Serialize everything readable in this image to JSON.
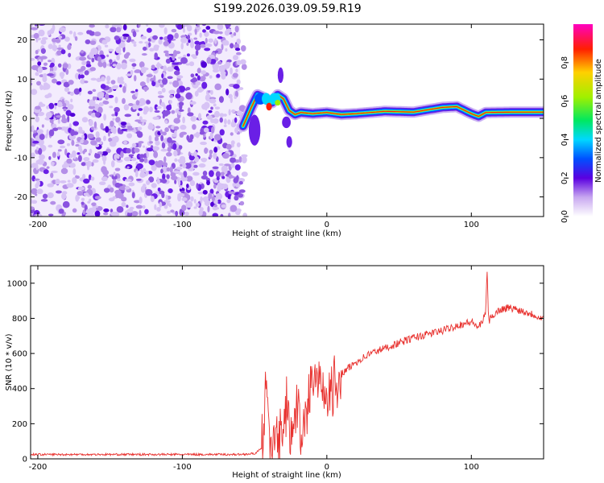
{
  "title": "S199.2026.039.09.59.R19",
  "chart_data": [
    {
      "type": "heatmap",
      "name": "spectrogram",
      "xlabel": "Height of straight line (km)",
      "ylabel": "Frequency (Hz)",
      "xlim": [
        -205,
        150
      ],
      "ylim": [
        -25,
        24
      ],
      "xticks": [
        -200,
        -100,
        0,
        100
      ],
      "yticks": [
        -20,
        -10,
        0,
        10,
        20
      ],
      "noise_region_x": [
        -205,
        -60
      ],
      "signal_track": {
        "x": [
          -58,
          -52,
          -48,
          -42,
          -38,
          -34,
          -30,
          -26,
          -22,
          -18,
          -10,
          0,
          10,
          20,
          40,
          60,
          80,
          90,
          100,
          105,
          110,
          130,
          150
        ],
        "freq": [
          -2,
          3,
          6,
          5,
          4,
          6,
          5,
          2,
          1,
          1.5,
          1.2,
          1.5,
          1.0,
          1.2,
          1.8,
          1.6,
          2.8,
          3.0,
          1.2,
          0.5,
          1.5,
          1.6,
          1.6
        ]
      },
      "colorbar": {
        "label": "Normalized spectral amplitude",
        "range": [
          0.0,
          1.0
        ],
        "ticks": [
          0.0,
          0.2,
          0.4,
          0.6,
          0.8
        ],
        "tick_labels": [
          "0.0",
          "0.2",
          "0.4",
          "0.6",
          "0.8"
        ]
      }
    },
    {
      "type": "line",
      "name": "snr",
      "xlabel": "Height of straight line (km)",
      "ylabel": "SNR (10 * v/v)",
      "xlim": [
        -205,
        150
      ],
      "ylim": [
        0,
        1100
      ],
      "xticks": [
        -200,
        -100,
        0,
        100
      ],
      "yticks": [
        0,
        200,
        400,
        600,
        800,
        1000
      ],
      "color": "#e8312e",
      "series": {
        "x": [
          -205,
          -150,
          -100,
          -60,
          -50,
          -45,
          -43,
          -42,
          -41,
          -40,
          -38,
          -35,
          -30,
          -28,
          -25,
          -22,
          -20,
          -18,
          -15,
          -12,
          -10,
          -5,
          0,
          5,
          10,
          20,
          30,
          40,
          50,
          60,
          70,
          80,
          90,
          100,
          105,
          108,
          110,
          111,
          112,
          115,
          120,
          125,
          130,
          140,
          150
        ],
        "y": [
          25,
          25,
          25,
          25,
          30,
          60,
          200,
          500,
          300,
          150,
          50,
          100,
          150,
          300,
          150,
          200,
          300,
          100,
          250,
          400,
          450,
          400,
          300,
          400,
          480,
          550,
          600,
          630,
          660,
          690,
          710,
          730,
          760,
          780,
          750,
          780,
          850,
          1080,
          780,
          820,
          850,
          860,
          855,
          830,
          800
        ]
      }
    }
  ]
}
